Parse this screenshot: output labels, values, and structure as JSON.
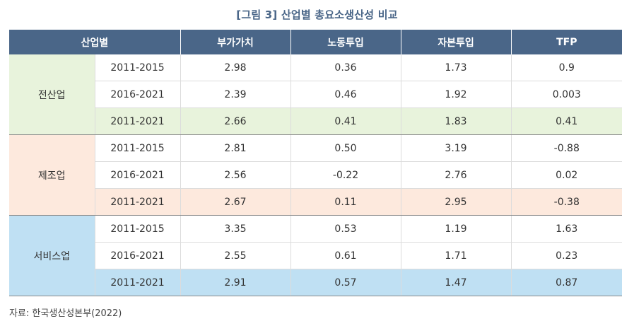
{
  "title": "[그림 3] 산업별 총요소생산성 비교",
  "header": {
    "sector": "산업별",
    "value_added": "부가가치",
    "labor": "노동투입",
    "capital": "자본투입",
    "tfp": "TFP"
  },
  "groups": [
    {
      "name": "전산업",
      "rows": [
        {
          "period": "2011-2015",
          "value_added": "2.98",
          "labor": "0.36",
          "capital": "1.73",
          "tfp": "0.9"
        },
        {
          "period": "2016-2021",
          "value_added": "2.39",
          "labor": "0.46",
          "capital": "1.92",
          "tfp": "0.003"
        },
        {
          "period": "2011-2021",
          "value_added": "2.66",
          "labor": "0.41",
          "capital": "1.83",
          "tfp": "0.41"
        }
      ]
    },
    {
      "name": "제조업",
      "rows": [
        {
          "period": "2011-2015",
          "value_added": "2.81",
          "labor": "0.50",
          "capital": "3.19",
          "tfp": "-0.88"
        },
        {
          "period": "2016-2021",
          "value_added": "2.56",
          "labor": "-0.22",
          "capital": "2.76",
          "tfp": "0.02"
        },
        {
          "period": "2011-2021",
          "value_added": "2.67",
          "labor": "0.11",
          "capital": "2.95",
          "tfp": "-0.38"
        }
      ]
    },
    {
      "name": "서비스업",
      "rows": [
        {
          "period": "2011-2015",
          "value_added": "3.35",
          "labor": "0.53",
          "capital": "1.19",
          "tfp": "1.63"
        },
        {
          "period": "2016-2021",
          "value_added": "2.55",
          "labor": "0.61",
          "capital": "1.71",
          "tfp": "0.23"
        },
        {
          "period": "2011-2021",
          "value_added": "2.91",
          "labor": "0.57",
          "capital": "1.47",
          "tfp": "0.87"
        }
      ]
    }
  ],
  "source": "자료: 한국생산성본부(2022)",
  "colors": {
    "header_bg": "#4a6688",
    "all_industry_bg": "#e8f3dc",
    "manufacturing_bg": "#fde9dd",
    "services_bg": "#bfe0f3"
  }
}
